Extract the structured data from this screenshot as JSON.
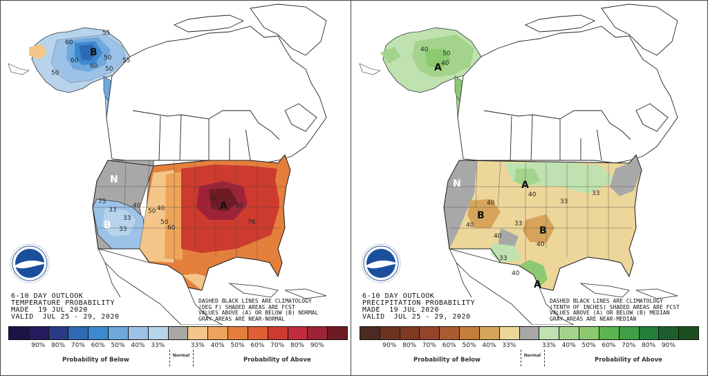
{
  "panels": [
    {
      "id": "temperature",
      "info_lines": [
        "6-10 DAY OUTLOOK",
        "TEMPERATURE PROBABILITY",
        "MADE  19 JUL 2020",
        "VALID  JUL 25 - 29, 2020"
      ],
      "note_lines": [
        "DASHED BLACK LINES ARE CLIMATOLOGY",
        "(DEG F) SHADED AREAS ARE FCST",
        "VALUES ABOVE (A) OR BELOW (B) NORMAL",
        "GRAY AREAS ARE NEAR-NORMAL"
      ],
      "map_letters": [
        "B",
        "N",
        "B",
        "A"
      ],
      "contour_numbers": [
        "55",
        "60",
        "60",
        "50",
        "50",
        "50",
        "60",
        "55",
        "75",
        "33",
        "33",
        "50",
        "40",
        "50",
        "60",
        "75",
        "80",
        "76",
        "33",
        "40"
      ],
      "legend_colors": [
        "#1c1446",
        "#241b5e",
        "#2a3a86",
        "#2e6bb4",
        "#3d8ad0",
        "#6ea8dd",
        "#9cc2e7",
        "#b8d3ec",
        "#a8a8a8",
        "#f4c68a",
        "#eea45a",
        "#e47f3c",
        "#de5f34",
        "#cd3a2e",
        "#c02c3e",
        "#9f2338",
        "#6e1b24"
      ],
      "tick_labels": [
        "90%",
        "80%",
        "70%",
        "60%",
        "50%",
        "40%",
        "33%",
        "33%",
        "40%",
        "50%",
        "60%",
        "70%",
        "80%",
        "90%"
      ],
      "below_label": "Probability of Below",
      "normal_label": "Normal",
      "above_label": "Probability of Above"
    },
    {
      "id": "precipitation",
      "info_lines": [
        "6-10 DAY OUTLOOK",
        "PRECIPITATION PROBABILITY",
        "MADE  19 JUL 2020",
        "VALID  JUL 25 - 29, 2020"
      ],
      "note_lines": [
        "DASHED BLACK LINES ARE CLIMATOLOGY",
        "(TENTH OF INCHES) SHADED AREAS ARE FCST",
        "VALUES ABOVE (A) OR BELOW (B) MEDIAN",
        "GRAY AREAS ARE NEAR-MEDIAN"
      ],
      "map_letters": [
        "A",
        "N",
        "A",
        "B",
        "B",
        "A"
      ],
      "contour_numbers": [
        "40",
        "50",
        "40",
        "40",
        "40",
        "33",
        "40",
        "33",
        "40",
        "40",
        "33",
        "33",
        "40"
      ],
      "legend_colors": [
        "#4a2a22",
        "#6b3420",
        "#7e3a22",
        "#94462a",
        "#a95c30",
        "#c47d3a",
        "#d6a45a",
        "#edd69a",
        "#a8a8a8",
        "#bfe2b0",
        "#a4d48c",
        "#8cc970",
        "#5db550",
        "#3f9e46",
        "#237f3a",
        "#1c5f2c",
        "#1d4e1e"
      ],
      "tick_labels": [
        "90%",
        "80%",
        "70%",
        "60%",
        "50%",
        "40%",
        "33%",
        "33%",
        "40%",
        "50%",
        "60%",
        "70%",
        "80%",
        "90%"
      ],
      "below_label": "Probability of Below",
      "normal_label": "Normal",
      "above_label": "Probability of Above"
    }
  ]
}
